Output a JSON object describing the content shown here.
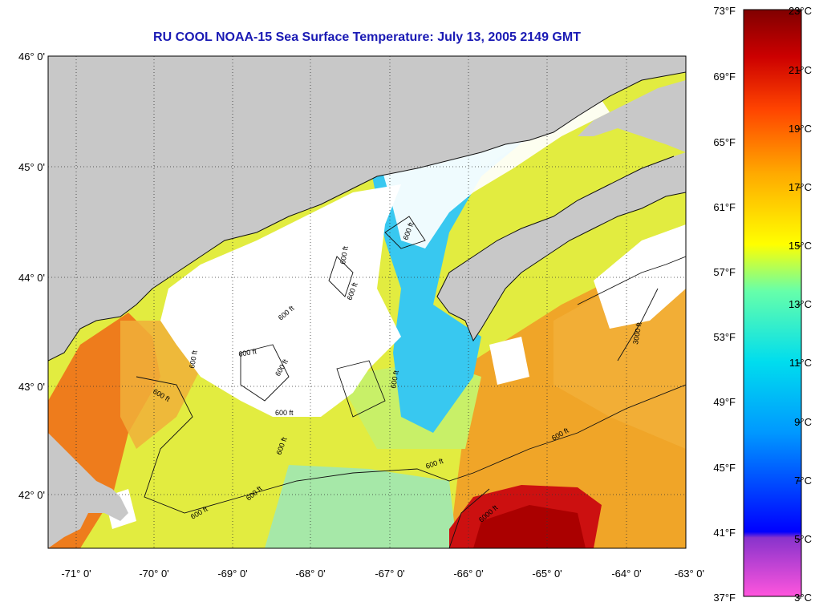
{
  "title": "RU COOL  NOAA-15  Sea Surface Temperature:  July 13, 2005 2149 GMT",
  "axes": {
    "lat_labels": [
      "46° 0'",
      "45° 0'",
      "44° 0'",
      "43° 0'",
      "42° 0'"
    ],
    "lon_labels": [
      "-71° 0'",
      "-70° 0'",
      "-69° 0'",
      "-68° 0'",
      "-67° 0'",
      "-66° 0'",
      "-65° 0'",
      "-64° 0'",
      "-63° 0'"
    ]
  },
  "contour_labels": [
    "600 ft",
    "600 ft",
    "600 ft",
    "600 ft",
    "600 ft",
    "600 ft",
    "600 ft",
    "600 ft",
    "600 ft",
    "600 ft",
    "600 ft",
    "600 ft",
    "600 ft",
    "600 ft",
    "6000 ft",
    "3000 ft",
    "600 ft"
  ],
  "colorbar": {
    "fahrenheit_labels": [
      "73°F",
      "69°F",
      "65°F",
      "61°F",
      "57°F",
      "53°F",
      "49°F",
      "45°F",
      "41°F",
      "37°F"
    ],
    "celsius_labels": [
      "23°C",
      "21°C",
      "19°C",
      "17°C",
      "15°C",
      "13°C",
      "11°C",
      "9°C",
      "7°C",
      "5°C",
      "3°C"
    ],
    "colors": [
      "#ff55dd",
      "#8833cc",
      "#0000ff",
      "#0099ff",
      "#00ddee",
      "#66ffaa",
      "#ffff00",
      "#ffaa00",
      "#ff4400",
      "#cc0000",
      "#800000"
    ]
  },
  "colors": {
    "land": "#c8c8c8",
    "cloud": "#ffffff",
    "cold_water": "#33ccee",
    "cool_water": "#99e8a0",
    "mild_water": "#e8f040",
    "warm_water": "#f0a020",
    "hot_water": "#cc0000",
    "title": "#1a1ab4"
  }
}
